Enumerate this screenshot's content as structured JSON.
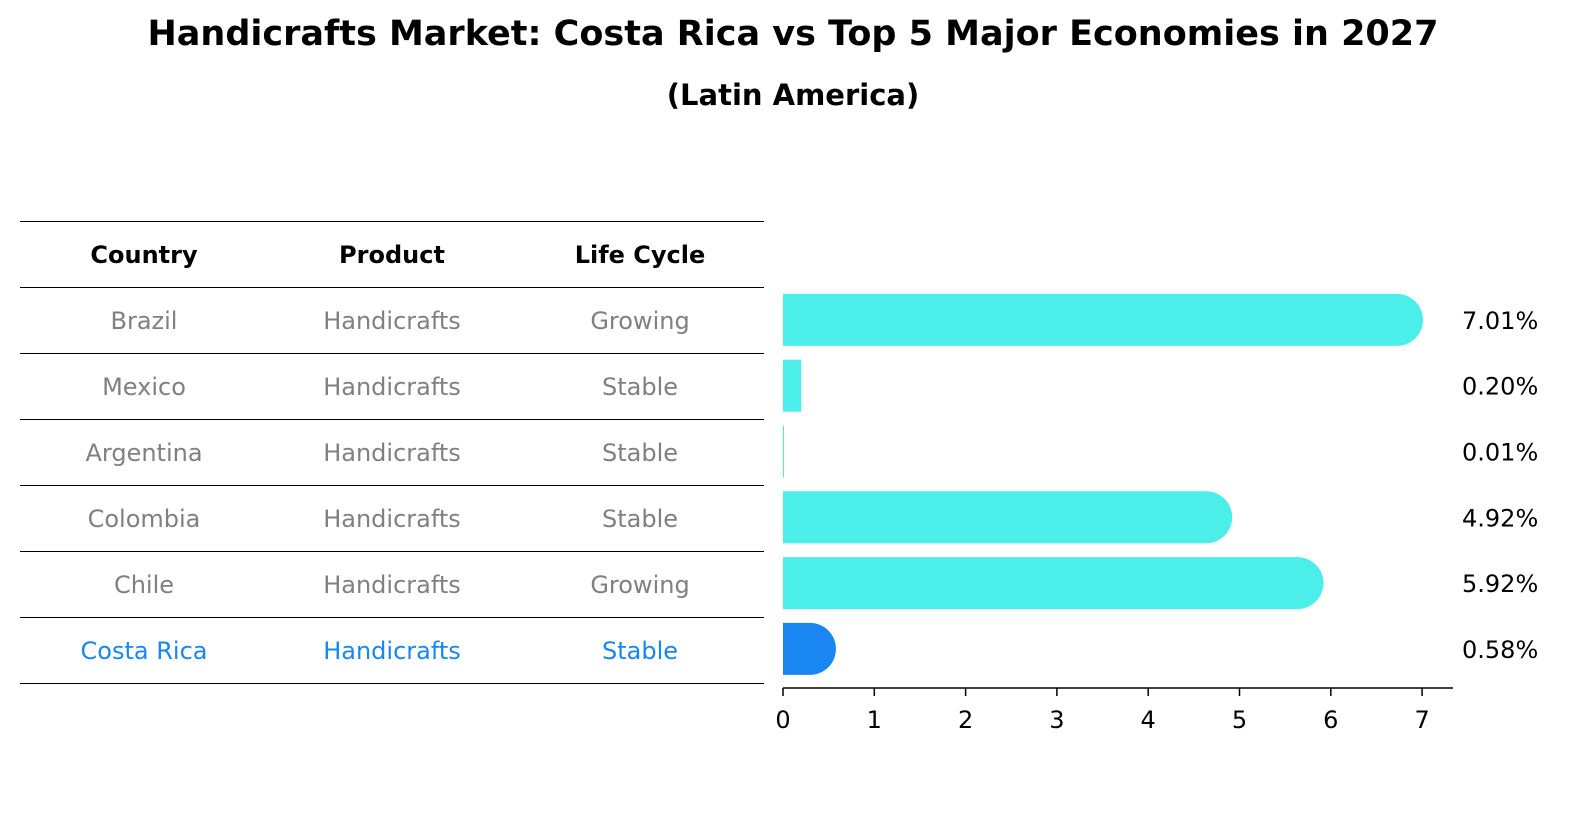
{
  "title": "Handicrafts Market: Costa Rica vs Top 5 Major Economies in 2027",
  "subtitle": "(Latin America)",
  "table": {
    "headers": [
      "Country",
      "Product",
      "Life Cycle"
    ],
    "rows": [
      [
        "Brazil",
        "Handicrafts",
        "Growing"
      ],
      [
        "Mexico",
        "Handicrafts",
        "Stable"
      ],
      [
        "Argentina",
        "Handicrafts",
        "Stable"
      ],
      [
        "Colombia",
        "Handicrafts",
        "Stable"
      ],
      [
        "Chile",
        "Handicrafts",
        "Growing"
      ],
      [
        "Costa Rica",
        "Handicrafts",
        "Stable"
      ]
    ]
  },
  "colors": {
    "bar": "#4ceeea",
    "highlight": "#1a86f2",
    "row_text": "#808080"
  },
  "chart_data": {
    "type": "bar",
    "orientation": "horizontal",
    "categories": [
      "Brazil",
      "Mexico",
      "Argentina",
      "Colombia",
      "Chile",
      "Costa Rica"
    ],
    "values": [
      7.01,
      0.2,
      0.01,
      4.92,
      5.92,
      0.58
    ],
    "value_labels": [
      "7.01%",
      "0.20%",
      "0.01%",
      "4.92%",
      "5.92%",
      "0.58%"
    ],
    "highlight": "Costa Rica",
    "xlim": [
      0,
      7.4
    ],
    "xticks": [
      0,
      1,
      2,
      3,
      4,
      5,
      6,
      7
    ],
    "xtick_labels": [
      "0",
      "1",
      "2",
      "3",
      "4",
      "5",
      "6",
      "7"
    ],
    "grid": false
  }
}
